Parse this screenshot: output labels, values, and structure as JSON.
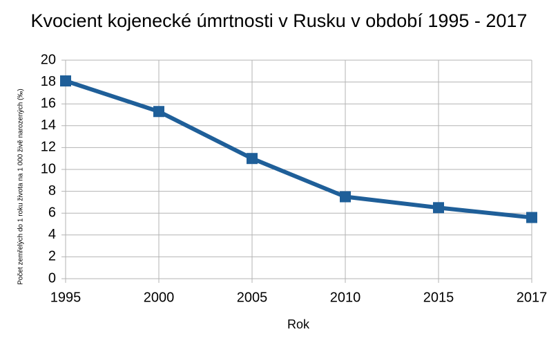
{
  "chart_data": {
    "type": "line",
    "title": "Kvocient kojenecké úmrtnosti v Rusku v období 1995 - 2017",
    "x_label": "Rok",
    "y_label": "Počet zemřelých do 1 roku života na 1 000 živě narozených (‰)",
    "categories": [
      "1995",
      "2000",
      "2005",
      "2010",
      "2015",
      "2017"
    ],
    "series": [
      {
        "color": "#1f5f99",
        "values": [
          18.1,
          15.3,
          11.0,
          7.5,
          6.5,
          5.6
        ]
      }
    ],
    "ylim": [
      0,
      20
    ],
    "yticks": [
      0,
      2,
      4,
      6,
      8,
      10,
      12,
      14,
      16,
      18,
      20
    ],
    "grid": true
  }
}
